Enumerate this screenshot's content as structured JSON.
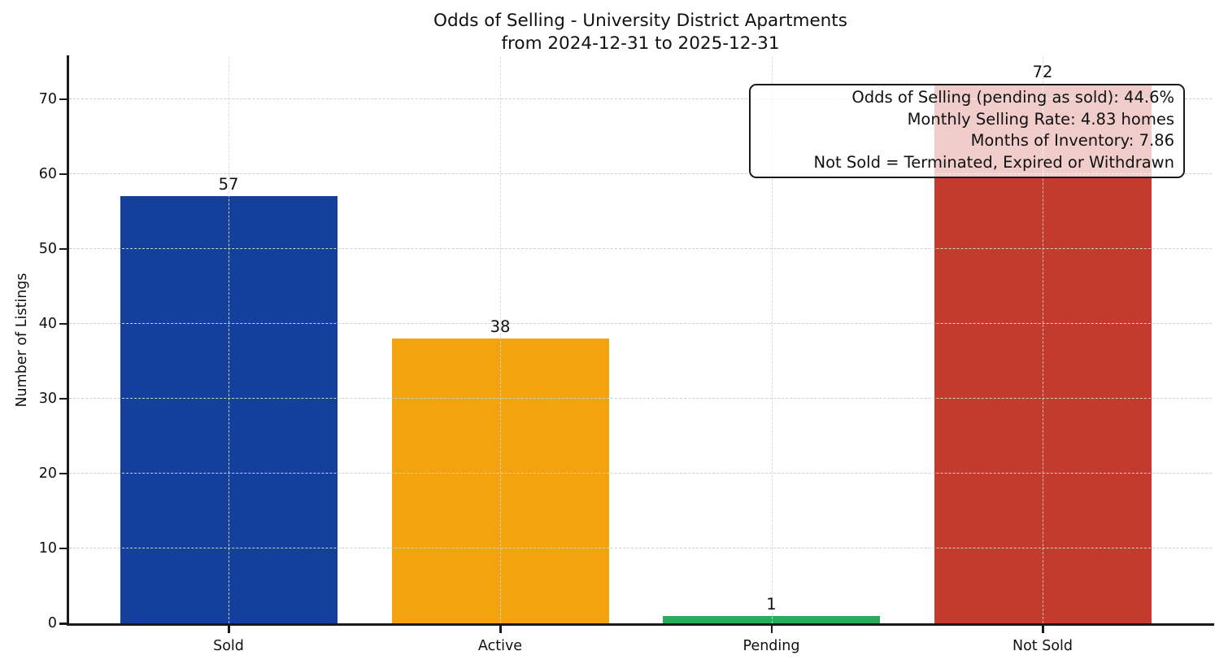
{
  "title": {
    "line1": "Odds of Selling - University District Apartments",
    "line2": "from 2024-12-31 to 2025-12-31"
  },
  "chart_data": {
    "type": "bar",
    "title": "Odds of Selling - University District Apartments\nfrom 2024-12-31 to 2025-12-31",
    "categories": [
      "Sold",
      "Active",
      "Pending",
      "Not Sold"
    ],
    "values": [
      57,
      38,
      1,
      72
    ],
    "bar_colors": [
      "#13409a",
      "#f3a30e",
      "#2cab5b",
      "#c23b2c"
    ],
    "value_labels": [
      "57",
      "38",
      "1",
      "72"
    ],
    "xlabel": "",
    "ylabel": "Number of Listings",
    "ylim": [
      0,
      75.6
    ],
    "yticks": [
      0,
      10,
      20,
      30,
      40,
      50,
      60,
      70
    ],
    "grid": "both-dashed",
    "legend": "none",
    "annotation": {
      "lines": [
        "Odds of Selling (pending as sold): 44.6%",
        "Monthly Selling Rate: 4.83 homes",
        "Months of Inventory: 7.86",
        "Not Sold = Terminated, Expired or Withdrawn"
      ]
    }
  },
  "colors": {
    "axis": "#1a1a1a",
    "grid": "#cfcfcf",
    "text": "#111111",
    "annotation_bg": "rgba(255,255,255,0.75)"
  }
}
